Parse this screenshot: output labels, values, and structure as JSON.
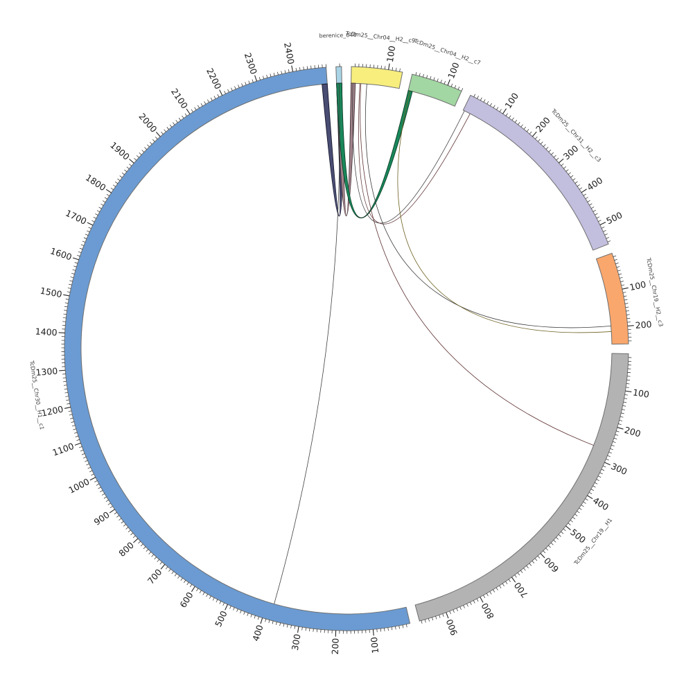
{
  "figure_title": "",
  "chart_data": {
    "type": "circos",
    "layout_hints": {
      "start_deg": 167,
      "gap_deg": 2,
      "tick_minor_interval": 10,
      "tick_major_interval": 100,
      "band_border_color": "#6e6e6e",
      "tick_color": "#222222",
      "label_color": "#1a1a1a",
      "sector_label_color": "#3a3a3a"
    },
    "sectors": [
      {
        "name": "TcDm25__Chr30__H1__c1",
        "length": 2490,
        "color": "#6b9bd2",
        "tick_labels": [
          100,
          200,
          300,
          400,
          500,
          600,
          700,
          800,
          900,
          1000,
          1100,
          1200,
          1300,
          1400,
          1500,
          1600,
          1700,
          1800,
          1900,
          2000,
          2100,
          2200,
          2300,
          2400
        ]
      },
      {
        "name": "berenice_040",
        "length": 15,
        "color": "#a9d4e6",
        "tick_labels": []
      },
      {
        "name": "TcDm25__Chr04__H2__c9",
        "length": 138,
        "color": "#f7ee7e",
        "tick_labels": [
          100
        ]
      },
      {
        "name": "TcDm25__Chr04__H2__c7",
        "length": 140,
        "color": "#a2d6a2",
        "tick_labels": [
          100
        ]
      },
      {
        "name": "TcDm25__Chr31__H2__c3",
        "length": 556,
        "color": "#c2bede",
        "tick_labels": [
          100,
          200,
          300,
          400,
          500
        ]
      },
      {
        "name": "TcDm25__Chr19__H2__c3",
        "length": 248,
        "color": "#f9a76d",
        "tick_labels": [
          100,
          200
        ]
      },
      {
        "name": "TcDm25__Chr19__H1",
        "length": 975,
        "color": "#b3b3b3",
        "tick_labels": [
          100,
          200,
          300,
          400,
          500,
          600,
          700,
          800,
          900
        ]
      }
    ],
    "ribbons": [
      {
        "from": {
          "sector": "berenice_040",
          "start": 0,
          "end": 15
        },
        "to": {
          "sector": "TcDm25__Chr30__H1__c1",
          "start": 2475,
          "end": 2490
        },
        "fill": "#494d72",
        "edge": "#14142a"
      },
      {
        "from": {
          "sector": "berenice_040",
          "start": 0,
          "end": 15
        },
        "to": {
          "sector": "TcDm25__Chr04__H2__c9",
          "start": 0,
          "end": 12
        },
        "fill": "#a2848c",
        "edge": "#3c2b30"
      },
      {
        "from": {
          "sector": "berenice_040",
          "start": 0,
          "end": 15
        },
        "to": {
          "sector": "TcDm25__Chr04__H2__c7",
          "start": 0,
          "end": 12
        },
        "fill": "#19875a",
        "edge": "#0c3b26"
      }
    ],
    "thin_links": [
      {
        "from": {
          "sector": "TcDm25__Chr04__H2__c9",
          "pos": 5
        },
        "to": {
          "sector": "TcDm25__Chr31__H2__c3",
          "pos": 4
        },
        "color": "#3a3a3a"
      },
      {
        "from": {
          "sector": "TcDm25__Chr04__H2__c9",
          "pos": 25
        },
        "to": {
          "sector": "TcDm25__Chr31__H2__c3",
          "pos": 22
        },
        "color": "#5e3132"
      },
      {
        "from": {
          "sector": "TcDm25__Chr04__H2__c9",
          "pos": 45
        },
        "to": {
          "sector": "TcDm25__Chr19__H2__c3",
          "pos": 196
        },
        "color": "#3a3a3a"
      },
      {
        "from": {
          "sector": "TcDm25__Chr04__H2__c7",
          "pos": 5
        },
        "to": {
          "sector": "TcDm25__Chr19__H2__c3",
          "pos": 212
        },
        "color": "#6b5f1e"
      },
      {
        "from": {
          "sector": "TcDm25__Chr04__H2__c9",
          "pos": 28
        },
        "to": {
          "sector": "TcDm25__Chr19__H1",
          "pos": 268
        },
        "color": "#5e3132"
      },
      {
        "from": {
          "sector": "berenice_040",
          "pos": 7
        },
        "to": {
          "sector": "TcDm25__Chr30__H1__c1",
          "pos": 380
        },
        "color": "#404040"
      }
    ]
  }
}
